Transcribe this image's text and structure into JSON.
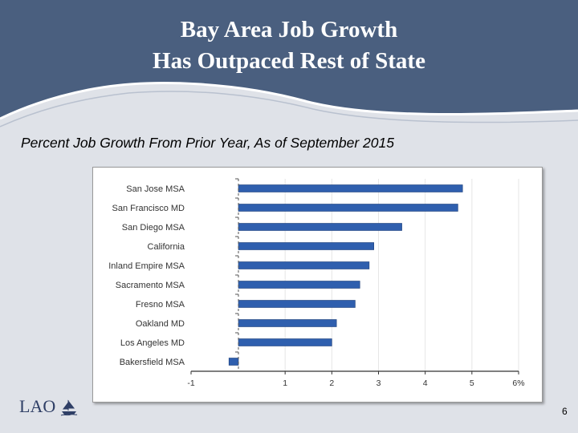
{
  "title": {
    "line1": "Bay Area Job Growth",
    "line2": "Has Outpaced Rest of State"
  },
  "subtitle": "Percent Job Growth From Prior Year, As of September 2015",
  "logo_text": "LAO",
  "page_number": "6",
  "colors": {
    "header": "#4a5f7f",
    "bar_fill": "#2f5fae",
    "bar_stroke": "#1d3f7a",
    "background": "#dfe2e8"
  },
  "chart_data": {
    "type": "bar",
    "orientation": "horizontal",
    "categories": [
      "San Jose MSA",
      "San Francisco MD",
      "San Diego MSA",
      "California",
      "Inland Empire MSA",
      "Sacramento MSA",
      "Fresno MSA",
      "Oakland MD",
      "Los Angeles MD",
      "Bakersfield MSA"
    ],
    "values": [
      4.8,
      4.7,
      3.5,
      2.9,
      2.8,
      2.6,
      2.5,
      2.1,
      2.0,
      -0.2
    ],
    "xlim": [
      -1,
      6
    ],
    "x_ticks": [
      -1,
      1,
      2,
      3,
      4,
      5,
      6
    ],
    "x_tick_labels": [
      "-1",
      "1",
      "2",
      "3",
      "4",
      "5",
      "6%"
    ],
    "grid": true
  }
}
